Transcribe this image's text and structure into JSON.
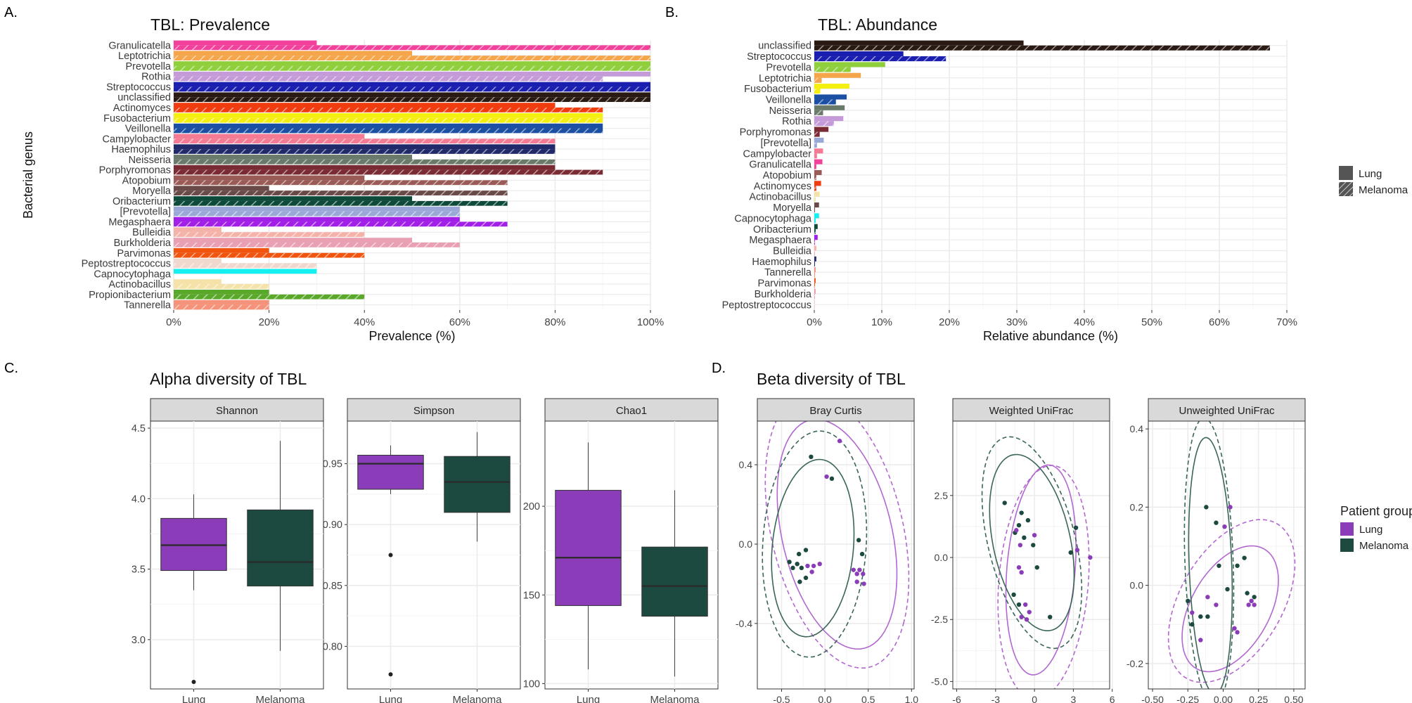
{
  "colors": {
    "lung": "#8b3cb8",
    "melanoma": "#1d4a40",
    "grid": "#ebebeb",
    "strip": "#d9d9d9"
  },
  "genus_colors": {
    "Granulicatella": "#f2419b",
    "Leptotrichia": "#f5a54a",
    "Prevotella": "#8fcf3c",
    "Rothia": "#c49ad8",
    "Streptococcus": "#1a1fb0",
    "unclassified": "#2a1a14",
    "Actinomyces": "#f03c0f",
    "Fusobacterium": "#f5ef0f",
    "Veillonella": "#1b4fa3",
    "Campylobacter": "#f57a94",
    "Haemophilus": "#202a6a",
    "Neisseria": "#6a7a6a",
    "Porphyromonas": "#7a2a32",
    "Atopobium": "#9a5a55",
    "Moryella": "#6a4a48",
    "Oribacterium": "#0d4a3a",
    "[Prevotella]": "#9aa8d8",
    "Megasphaera": "#a21fe8",
    "Bulleidia": "#f5b2a8",
    "Burkholderia": "#e8a0b2",
    "Parvimonas": "#f0540f",
    "Peptostreptococcus": "#f0d8cf",
    "Capnocytophaga": "#14f0f0",
    "Actinobacillus": "#f5e2a8",
    "Propionibacterium": "#5aa82a",
    "Tannerella": "#f5927a"
  },
  "panel_labels": {
    "a": "A.",
    "b": "B.",
    "c": "C.",
    "d": "D."
  },
  "panel_titles": {
    "a": "TBL: Prevalence",
    "b": "TBL: Abundance",
    "c": "Alpha diversity of TBL",
    "d": "Beta diversity of TBL"
  },
  "legend_bar": {
    "lung": "Lung",
    "melanoma": "Melanoma"
  },
  "legend_group": {
    "title": "Patient group",
    "lung": "Lung",
    "melanoma": "Melanoma"
  },
  "chart_data": [
    {
      "id": "prevalence",
      "type": "bar",
      "orientation": "horizontal",
      "title": "TBL: Prevalence",
      "xlabel": "Prevalence (%)",
      "ylabel": "Bacterial genus",
      "xlim": [
        0,
        100
      ],
      "xticks": [
        0,
        20,
        40,
        60,
        80,
        100
      ],
      "tick_suffix": "%",
      "categories": [
        "Granulicatella",
        "Leptotrichia",
        "Prevotella",
        "Rothia",
        "Streptococcus",
        "unclassified",
        "Actinomyces",
        "Fusobacterium",
        "Veillonella",
        "Campylobacter",
        "Haemophilus",
        "Neisseria",
        "Porphyromonas",
        "Atopobium",
        "Moryella",
        "Oribacterium",
        "[Prevotella]",
        "Megasphaera",
        "Bulleidia",
        "Burkholderia",
        "Parvimonas",
        "Peptostreptococcus",
        "Capnocytophaga",
        "Actinobacillus",
        "Propionibacterium",
        "Tannerella"
      ],
      "series": [
        {
          "name": "Lung",
          "values": [
            30,
            50,
            100,
            100,
            100,
            100,
            80,
            90,
            90,
            40,
            80,
            50,
            80,
            40,
            20,
            50,
            60,
            60,
            10,
            50,
            20,
            10,
            30,
            10,
            20,
            20
          ]
        },
        {
          "name": "Melanoma",
          "values": [
            100,
            100,
            100,
            90,
            100,
            100,
            90,
            90,
            90,
            80,
            80,
            80,
            90,
            70,
            70,
            70,
            60,
            70,
            40,
            60,
            40,
            30,
            0,
            20,
            40,
            20
          ]
        }
      ]
    },
    {
      "id": "abundance",
      "type": "bar",
      "orientation": "horizontal",
      "title": "TBL: Abundance",
      "xlabel": "Relative abundance (%)",
      "xlim": [
        0,
        70
      ],
      "xticks": [
        0,
        10,
        20,
        30,
        40,
        50,
        60,
        70
      ],
      "tick_suffix": "%",
      "categories": [
        "unclassified",
        "Streptococcus",
        "Prevotella",
        "Leptotrichia",
        "Fusobacterium",
        "Veillonella",
        "Neisseria",
        "Rothia",
        "Porphyromonas",
        "[Prevotella]",
        "Campylobacter",
        "Granulicatella",
        "Atopobium",
        "Actinomyces",
        "Actinobacillus",
        "Moryella",
        "Capnocytophaga",
        "Oribacterium",
        "Megasphaera",
        "Bulleidia",
        "Haemophilus",
        "Tannerella",
        "Parvimonas",
        "Burkholderia",
        "Peptostreptococcus"
      ],
      "series": [
        {
          "name": "Lung",
          "values": [
            31,
            13.2,
            10.5,
            6.9,
            5.2,
            4.8,
            4.5,
            4.3,
            2.1,
            1.4,
            1.3,
            1.2,
            1.1,
            1.0,
            0.8,
            0.7,
            0.7,
            0.5,
            0.5,
            0.3,
            0.3,
            0.2,
            0.2,
            0.2,
            0.1
          ]
        },
        {
          "name": "Melanoma",
          "values": [
            67.5,
            19.5,
            5.4,
            1.1,
            0.9,
            3.2,
            1.3,
            2.9,
            0.8,
            0.4,
            0.4,
            0.3,
            0.3,
            0.3,
            0.2,
            0.1,
            0.2,
            0.2,
            0.1,
            0.1,
            0.1,
            0.1,
            0.1,
            0.1,
            0.1
          ]
        }
      ]
    },
    {
      "id": "alpha",
      "type": "box",
      "title": "Alpha diversity of TBL",
      "categories": [
        "Lung",
        "Melanoma"
      ],
      "facets": [
        {
          "name": "Shannon",
          "ylim": [
            2.65,
            4.55
          ],
          "yticks": [
            3.0,
            3.5,
            4.0,
            4.5
          ],
          "tick_decimals": 1,
          "boxes": [
            {
              "group": "Lung",
              "whisker_low": 3.35,
              "q1": 3.49,
              "median": 3.67,
              "q3": 3.86,
              "whisker_high": 4.03,
              "outliers": [
                2.7
              ]
            },
            {
              "group": "Melanoma",
              "whisker_low": 2.92,
              "q1": 3.38,
              "median": 3.55,
              "q3": 3.92,
              "whisker_high": 4.41,
              "outliers": []
            }
          ]
        },
        {
          "name": "Simpson",
          "ylim": [
            0.765,
            0.985
          ],
          "yticks": [
            0.8,
            0.85,
            0.9,
            0.95
          ],
          "tick_decimals": 2,
          "boxes": [
            {
              "group": "Lung",
              "whisker_low": 0.925,
              "q1": 0.929,
              "median": 0.95,
              "q3": 0.957,
              "whisker_high": 0.965,
              "outliers": [
                0.875,
                0.777
              ]
            },
            {
              "group": "Melanoma",
              "whisker_low": 0.886,
              "q1": 0.91,
              "median": 0.935,
              "q3": 0.956,
              "whisker_high": 0.976,
              "outliers": []
            }
          ]
        },
        {
          "name": "Chao1",
          "ylim": [
            97,
            248
          ],
          "yticks": [
            100,
            150,
            200
          ],
          "tick_decimals": 0,
          "boxes": [
            {
              "group": "Lung",
              "whisker_low": 108,
              "q1": 144,
              "median": 171,
              "q3": 209,
              "whisker_high": 236,
              "outliers": []
            },
            {
              "group": "Melanoma",
              "whisker_low": 104,
              "q1": 138,
              "median": 155,
              "q3": 177,
              "whisker_high": 209,
              "outliers": []
            }
          ]
        }
      ]
    },
    {
      "id": "beta",
      "type": "scatter",
      "title": "Beta diversity of TBL",
      "facets": [
        {
          "name": "Bray Curtis",
          "xlim": [
            -0.78,
            1.03
          ],
          "ylim": [
            -0.73,
            0.62
          ],
          "xticks": [
            -0.5,
            0.0,
            0.5,
            1.0
          ],
          "xtick_labels": [
            "-0.5",
            "0.0",
            "0.5",
            "1.0"
          ],
          "yticks": [
            -0.4,
            0.0,
            0.4
          ],
          "ytick_labels": [
            "-0.4",
            "0.0",
            "0.4"
          ],
          "lung_points": [
            [
              0.17,
              0.52
            ],
            [
              0.02,
              0.34
            ],
            [
              -0.06,
              -0.1
            ],
            [
              -0.13,
              -0.11
            ],
            [
              -0.2,
              -0.11
            ],
            [
              0.33,
              -0.13
            ],
            [
              0.37,
              -0.15
            ],
            [
              0.4,
              -0.13
            ],
            [
              0.44,
              -0.15
            ],
            [
              0.37,
              -0.19
            ],
            [
              0.45,
              -0.2
            ],
            [
              -0.15,
              -0.14
            ]
          ],
          "melanoma_points": [
            [
              -0.16,
              0.44
            ],
            [
              0.08,
              0.33
            ],
            [
              -0.41,
              -0.09
            ],
            [
              -0.37,
              -0.12
            ],
            [
              -0.3,
              -0.05
            ],
            [
              -0.22,
              -0.17
            ],
            [
              -0.32,
              -0.1
            ],
            [
              -0.27,
              -0.12
            ],
            [
              -0.22,
              -0.03
            ],
            [
              0.39,
              0.02
            ],
            [
              0.43,
              -0.05
            ],
            [
              -0.29,
              -0.19
            ]
          ],
          "ellipses": [
            {
              "group": "Lung",
              "dashed": false,
              "cx": 0.14,
              "cy": 0.05,
              "rx": 0.75,
              "ry": 0.5,
              "angle": -0.55
            },
            {
              "group": "Lung",
              "dashed": true,
              "cx": 0.14,
              "cy": 0.07,
              "rx": 0.9,
              "ry": 0.6,
              "angle": -0.55
            },
            {
              "group": "Melanoma",
              "dashed": false,
              "cx": -0.14,
              "cy": -0.02,
              "rx": 0.5,
              "ry": 0.42,
              "angle": 0.6
            },
            {
              "group": "Melanoma",
              "dashed": true,
              "cx": -0.12,
              "cy": 0.0,
              "rx": 0.62,
              "ry": 0.55,
              "angle": 0.55
            }
          ]
        },
        {
          "name": "Weighted UniFrac",
          "xlim": [
            -6.3,
            5.8
          ],
          "ylim": [
            -5.3,
            5.5
          ],
          "xticks": [
            -6,
            -3,
            0,
            3,
            6
          ],
          "xtick_labels": [
            "-6",
            "-3",
            "0",
            "3",
            "6"
          ],
          "yticks": [
            -5.0,
            -2.5,
            0.0,
            2.5
          ],
          "ytick_labels": [
            "-5.0",
            "-2.5",
            "0.0",
            "2.5"
          ],
          "lung_points": [
            [
              -1.4,
              1.1
            ],
            [
              -1.2,
              -0.4
            ],
            [
              -1.0,
              -0.6
            ],
            [
              0.0,
              0.9
            ],
            [
              -0.7,
              -1.9
            ],
            [
              -0.4,
              -2.2
            ],
            [
              -1.0,
              -2.4
            ],
            [
              -0.6,
              -2.5
            ],
            [
              3.3,
              0.3
            ],
            [
              4.3,
              0.0
            ],
            [
              -1.1,
              0.5
            ]
          ],
          "melanoma_points": [
            [
              -2.3,
              2.2
            ],
            [
              -1.2,
              1.3
            ],
            [
              -1.5,
              1.0
            ],
            [
              -0.8,
              0.8
            ],
            [
              -0.1,
              0.5
            ],
            [
              0.2,
              -0.4
            ],
            [
              -1.6,
              -1.5
            ],
            [
              -1.2,
              -1.9
            ],
            [
              2.8,
              0.2
            ],
            [
              -1.0,
              1.8
            ],
            [
              -0.5,
              1.5
            ],
            [
              3.2,
              1.2
            ],
            [
              1.2,
              -2.4
            ]
          ],
          "ellipses": [
            {
              "group": "Lung",
              "dashed": false,
              "cx": 0.5,
              "cy": -0.5,
              "rx": 4.3,
              "ry": 2.6,
              "angle": 1.35
            },
            {
              "group": "Lung",
              "dashed": true,
              "cx": 0.7,
              "cy": -1.0,
              "rx": 4.8,
              "ry": 3.4,
              "angle": 1.3
            },
            {
              "group": "Melanoma",
              "dashed": false,
              "cx": -0.2,
              "cy": 0.6,
              "rx": 4.0,
              "ry": 2.7,
              "angle": -0.9
            },
            {
              "group": "Melanoma",
              "dashed": true,
              "cx": -0.2,
              "cy": 0.6,
              "rx": 4.9,
              "ry": 3.0,
              "angle": -0.9
            }
          ]
        },
        {
          "name": "Unweighted UniFrac",
          "xlim": [
            -0.53,
            0.58
          ],
          "ylim": [
            -0.265,
            0.42
          ],
          "xticks": [
            -0.5,
            -0.25,
            0.0,
            0.25,
            0.5
          ],
          "xtick_labels": [
            "-0.50",
            "-0.25",
            "0.00",
            "0.25",
            "0.50"
          ],
          "yticks": [
            -0.2,
            0.0,
            0.2,
            0.4
          ],
          "ytick_labels": [
            "-0.2",
            "0.0",
            "0.2",
            "0.4"
          ],
          "lung_points": [
            [
              0.05,
              0.2
            ],
            [
              0.01,
              0.15
            ],
            [
              -0.11,
              -0.03
            ],
            [
              -0.05,
              -0.05
            ],
            [
              0.18,
              -0.05
            ],
            [
              0.2,
              -0.04
            ],
            [
              0.22,
              -0.05
            ],
            [
              -0.22,
              -0.07
            ],
            [
              -0.16,
              -0.14
            ],
            [
              0.08,
              -0.11
            ],
            [
              0.1,
              -0.12
            ]
          ],
          "melanoma_points": [
            [
              -0.12,
              0.2
            ],
            [
              -0.05,
              0.16
            ],
            [
              -0.25,
              -0.04
            ],
            [
              -0.22,
              -0.1
            ],
            [
              -0.11,
              -0.08
            ],
            [
              -0.03,
              0.05
            ],
            [
              0.1,
              0.05
            ],
            [
              0.03,
              -0.01
            ],
            [
              0.17,
              -0.02
            ],
            [
              0.22,
              -0.03
            ],
            [
              -0.16,
              -0.08
            ],
            [
              0.15,
              0.07
            ]
          ],
          "ellipses": [
            {
              "group": "Lung",
              "dashed": false,
              "cx": 0.05,
              "cy": -0.06,
              "rx": 0.35,
              "ry": 0.14,
              "angle": 0.25
            },
            {
              "group": "Lung",
              "dashed": true,
              "cx": 0.06,
              "cy": -0.04,
              "rx": 0.46,
              "ry": 0.18,
              "angle": 0.25
            },
            {
              "group": "Melanoma",
              "dashed": false,
              "cx": -0.09,
              "cy": 0.05,
              "rx": 0.33,
              "ry": 0.15,
              "angle": -1.45
            },
            {
              "group": "Melanoma",
              "dashed": true,
              "cx": -0.1,
              "cy": 0.06,
              "rx": 0.37,
              "ry": 0.17,
              "angle": -1.45
            }
          ]
        }
      ]
    }
  ]
}
